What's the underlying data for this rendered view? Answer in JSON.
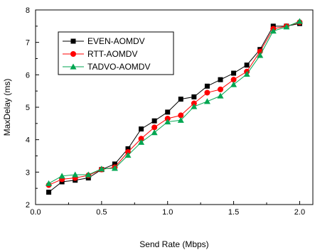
{
  "chart_data": {
    "type": "line",
    "title": "",
    "xlabel": "Send Rate (Mbps)",
    "ylabel": "MaxDelay (ms)",
    "xlim": [
      0.0,
      2.1
    ],
    "ylim": [
      2,
      8
    ],
    "x_ticks": [
      0.0,
      0.5,
      1.0,
      1.5,
      2.0
    ],
    "x_tick_labels": [
      "0.0",
      "0.5",
      "1.0",
      "1.5",
      "2.0"
    ],
    "y_ticks": [
      2,
      3,
      4,
      5,
      6,
      7,
      8
    ],
    "y_tick_labels": [
      "2",
      "3",
      "4",
      "5",
      "6",
      "7",
      "8"
    ],
    "grid": false,
    "legend_position": "top-left",
    "x": [
      0.1,
      0.2,
      0.3,
      0.4,
      0.5,
      0.6,
      0.7,
      0.8,
      0.9,
      1.0,
      1.1,
      1.2,
      1.3,
      1.4,
      1.5,
      1.6,
      1.7,
      1.8,
      1.9,
      2.0
    ],
    "series": [
      {
        "name": "EVEN-AOMDV",
        "color": "#000000",
        "marker": "square",
        "values": [
          2.38,
          2.7,
          2.75,
          2.82,
          3.08,
          3.25,
          3.72,
          4.33,
          4.58,
          4.85,
          5.25,
          5.32,
          5.65,
          5.85,
          6.05,
          6.3,
          6.78,
          7.5,
          7.5,
          7.58
        ]
      },
      {
        "name": "RTT-AOMDV",
        "color": "#ff0000",
        "marker": "circle",
        "values": [
          2.6,
          2.78,
          2.82,
          2.9,
          3.08,
          3.15,
          3.62,
          4.03,
          4.38,
          4.65,
          4.75,
          5.12,
          5.45,
          5.55,
          5.85,
          6.1,
          6.72,
          7.42,
          7.5,
          7.62
        ]
      },
      {
        "name": "TADVO-AOMDV",
        "color": "#00a651",
        "marker": "triangle",
        "values": [
          2.65,
          2.88,
          2.92,
          2.92,
          3.1,
          3.12,
          3.52,
          3.92,
          4.22,
          4.55,
          4.6,
          5.02,
          5.18,
          5.35,
          5.7,
          6.02,
          6.6,
          7.35,
          7.48,
          7.65
        ]
      }
    ]
  }
}
